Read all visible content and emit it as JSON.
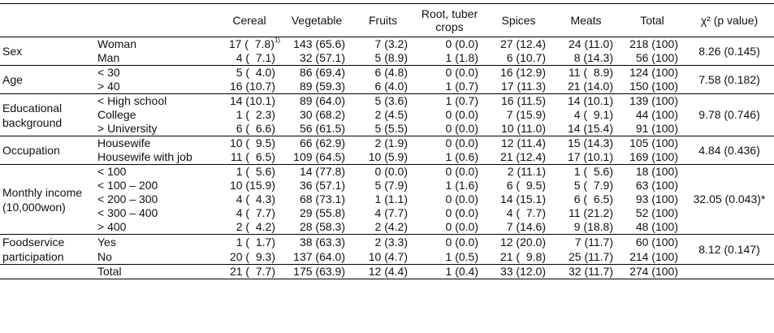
{
  "headers": {
    "col1": "",
    "col2": "",
    "cereal": "Cereal",
    "vegetable": "Vegetable",
    "fruits": "Fruits",
    "root": "Root, tuber crops",
    "spices": "Spices",
    "meats": "Meats",
    "total": "Total",
    "chi": "χ² (p value)"
  },
  "groups": [
    {
      "category": "Sex",
      "chi": "8.26 (0.145)",
      "rows": [
        {
          "label": "Woman",
          "cereal": "17 (  7.8)",
          "cereal_note": "1)",
          "vegetable": "143 (65.6)",
          "fruits": "7 (3.2)",
          "root": "0 (0.0)",
          "spices": "27 (12.4)",
          "meats": "24 (11.0)",
          "total": "218 (100)"
        },
        {
          "label": "Man",
          "cereal": "4 (  7.1)",
          "vegetable": "32 (57.1)",
          "fruits": "5 (8.9)",
          "root": "1 (1.8)",
          "spices": "6 (10.7)",
          "meats": "8 (14.3)",
          "total": "56 (100)"
        }
      ]
    },
    {
      "category": "Age",
      "chi": "7.58 (0.182)",
      "rows": [
        {
          "label": "< 30",
          "cereal": "5 (  4.0)",
          "vegetable": "86 (69.4)",
          "fruits": "6 (4.8)",
          "root": "0 (0.0)",
          "spices": "16 (12.9)",
          "meats": "11 (  8.9)",
          "total": "124 (100)"
        },
        {
          "label": "> 40",
          "cereal": "16 (10.7)",
          "vegetable": "89 (59.3)",
          "fruits": "6 (4.0)",
          "root": "1 (0.7)",
          "spices": "17 (11.3)",
          "meats": "21 (14.0)",
          "total": "150 (100)"
        }
      ]
    },
    {
      "category": "Educational background",
      "chi": "9.78 (0.746)",
      "rows": [
        {
          "label": "< High school",
          "cereal": "14 (10.1)",
          "vegetable": "89 (64.0)",
          "fruits": "5 (3.6)",
          "root": "1 (0.7)",
          "spices": "16 (11.5)",
          "meats": "14 (10.1)",
          "total": "139 (100)"
        },
        {
          "label": "College",
          "cereal": "1 (  2.3)",
          "vegetable": "30 (68.2)",
          "fruits": "2 (4.5)",
          "root": "0 (0.0)",
          "spices": "7 (15.9)",
          "meats": "4 (  9.1)",
          "total": "44 (100)"
        },
        {
          "label": "> University",
          "cereal": "6 (  6.6)",
          "vegetable": "56 (61.5)",
          "fruits": "5 (5.5)",
          "root": "0 (0.0)",
          "spices": "10 (11.0)",
          "meats": "14 (15.4)",
          "total": "91 (100)"
        }
      ]
    },
    {
      "category": "Occupation",
      "chi": "4.84 (0.436)",
      "rows": [
        {
          "label": "Housewife",
          "cereal": "10 (  9.5)",
          "vegetable": "66 (62.9)",
          "fruits": "2 (1.9)",
          "root": "0 (0.0)",
          "spices": "12 (11.4)",
          "meats": "15 (14.3)",
          "total": "105 (100)"
        },
        {
          "label": "Housewife with job",
          "cereal": "11 (  6.5)",
          "vegetable": "109 (64.5)",
          "fruits": "10 (5.9)",
          "root": "1 (0.6)",
          "spices": "21 (12.4)",
          "meats": "17 (10.1)",
          "total": "169 (100)"
        }
      ]
    },
    {
      "category": "Monthly income (10,000won)",
      "chi": "32.05 (0.043)*",
      "rows": [
        {
          "label": "< 100",
          "cereal": "1 (  5.6)",
          "vegetable": "14 (77.8)",
          "fruits": "0 (0.0)",
          "root": "0 (0.0)",
          "spices": "2 (11.1)",
          "meats": "1 (  5.6)",
          "total": "18 (100)"
        },
        {
          "label": "< 100 – 200",
          "cereal": "10 (15.9)",
          "vegetable": "36 (57.1)",
          "fruits": "5 (7.9)",
          "root": "1 (1.6)",
          "spices": "6 (  9.5)",
          "meats": "5 (  7.9)",
          "total": "63 (100)"
        },
        {
          "label": "< 200 – 300",
          "cereal": "4 (  4.3)",
          "vegetable": "68 (73.1)",
          "fruits": "1 (1.1)",
          "root": "0 (0.0)",
          "spices": "14 (15.1)",
          "meats": "6 (  6.5)",
          "total": "93 (100)"
        },
        {
          "label": "< 300 – 400",
          "cereal": "4 (  7.7)",
          "vegetable": "29 (55.8)",
          "fruits": "4 (7.7)",
          "root": "0 (0.0)",
          "spices": "4 (  7.7)",
          "meats": "11 (21.2)",
          "total": "52 (100)"
        },
        {
          "label": "> 400",
          "cereal": "2 (  4.2)",
          "vegetable": "28 (58.3)",
          "fruits": "2 (4.2)",
          "root": "0 (0.0)",
          "spices": "7 (14.6)",
          "meats": "9 (18.8)",
          "total": "48 (100)"
        }
      ]
    },
    {
      "category": "Foodservice participation",
      "chi": "8.12 (0.147)",
      "rows": [
        {
          "label": "Yes",
          "cereal": "1 (  1.7)",
          "vegetable": "38 (63.3)",
          "fruits": "2 (3.3)",
          "root": "0 (0.0)",
          "spices": "12 (20.0)",
          "meats": "7 (11.7)",
          "total": "60 (100)"
        },
        {
          "label": "No",
          "cereal": "20 (  9.3)",
          "vegetable": "137 (64.0)",
          "fruits": "10 (4.7)",
          "root": "1 (0.5)",
          "spices": "21 (  9.8)",
          "meats": "25 (11.7)",
          "total": "214 (100)"
        }
      ]
    }
  ],
  "total_row": {
    "label": "Total",
    "cereal": "21 (  7.7)",
    "vegetable": "175 (63.9)",
    "fruits": "12 (4.4)",
    "root": "1 (0.4)",
    "spices": "33 (12.0)",
    "meats": "32 (11.7)",
    "total": "274 (100)"
  }
}
